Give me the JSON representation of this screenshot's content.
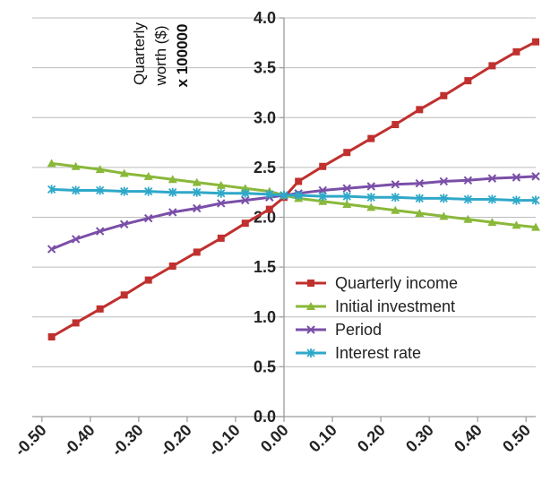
{
  "chart_data": {
    "type": "line",
    "title": "",
    "ylabel_lines": [
      "Quarterly",
      "worth ($)",
      "x 100000"
    ],
    "xlabel": "",
    "xlim": [
      -0.52,
      0.52
    ],
    "ylim": [
      0,
      4
    ],
    "x_ticks": [
      -0.5,
      -0.4,
      -0.3,
      -0.2,
      -0.1,
      0.0,
      0.1,
      0.2,
      0.3,
      0.4,
      0.5
    ],
    "x_tick_labels": [
      "-0.50",
      "-0.40",
      "-0.30",
      "-0.20",
      "-0.10",
      "0.00",
      "0.10",
      "0.20",
      "0.30",
      "0.40",
      "0.50"
    ],
    "y_ticks": [
      0,
      0.5,
      1,
      1.5,
      2,
      2.5,
      3,
      3.5,
      4
    ],
    "y_tick_labels": [
      "0.0",
      "0.5",
      "1.0",
      "1.5",
      "2.0",
      "2.5",
      "3.0",
      "3.5",
      "4.0"
    ],
    "grid": "horizontal",
    "legend_position": "bottom-right",
    "x": [
      -0.48,
      -0.43,
      -0.38,
      -0.33,
      -0.28,
      -0.23,
      -0.18,
      -0.13,
      -0.08,
      -0.03,
      0.0,
      0.03,
      0.08,
      0.13,
      0.18,
      0.23,
      0.28,
      0.33,
      0.38,
      0.43,
      0.48,
      0.52
    ],
    "series": [
      {
        "name": "Quarterly income",
        "color": "#c0302e",
        "marker": "square",
        "values": [
          0.8,
          0.94,
          1.08,
          1.22,
          1.37,
          1.51,
          1.65,
          1.79,
          1.94,
          2.08,
          2.2,
          2.36,
          2.51,
          2.65,
          2.79,
          2.93,
          3.08,
          3.22,
          3.37,
          3.52,
          3.66,
          3.76
        ]
      },
      {
        "name": "Initial investment",
        "color": "#8ab83a",
        "marker": "triangle",
        "values": [
          2.54,
          2.51,
          2.48,
          2.44,
          2.41,
          2.38,
          2.35,
          2.32,
          2.29,
          2.26,
          2.22,
          2.19,
          2.16,
          2.13,
          2.1,
          2.07,
          2.04,
          2.01,
          1.98,
          1.95,
          1.92,
          1.9
        ]
      },
      {
        "name": "Period",
        "color": "#7a4fa8",
        "marker": "x",
        "values": [
          1.68,
          1.78,
          1.86,
          1.93,
          1.99,
          2.05,
          2.09,
          2.14,
          2.17,
          2.2,
          2.22,
          2.24,
          2.27,
          2.29,
          2.31,
          2.33,
          2.34,
          2.36,
          2.37,
          2.39,
          2.4,
          2.41
        ]
      },
      {
        "name": "Interest rate",
        "color": "#2fa8c9",
        "marker": "star",
        "values": [
          2.28,
          2.27,
          2.27,
          2.26,
          2.26,
          2.25,
          2.25,
          2.24,
          2.24,
          2.23,
          2.22,
          2.22,
          2.21,
          2.21,
          2.2,
          2.2,
          2.19,
          2.19,
          2.18,
          2.18,
          2.17,
          2.17
        ]
      }
    ]
  }
}
